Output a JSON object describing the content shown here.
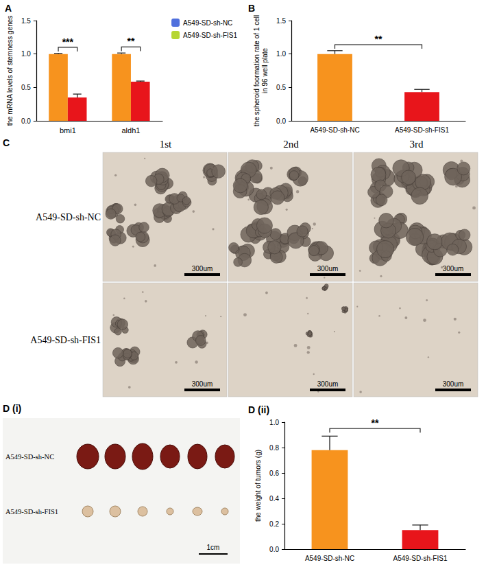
{
  "chart_data": [
    {
      "type": "bar",
      "title": "A",
      "ylabel": "the mRNA levels of stemness genes",
      "categories": [
        "bmi1",
        "aldh1"
      ],
      "series": [
        {
          "name": "A549-SD-sh-NC",
          "color": "#F7931E",
          "values": [
            1.0,
            1.0
          ],
          "errors": [
            0.01,
            0.015
          ]
        },
        {
          "name": "A549-SD-sh-FIS1",
          "color": "#E8151B",
          "values": [
            0.35,
            0.585
          ],
          "errors": [
            0.05,
            0.01
          ]
        }
      ],
      "ylim": [
        0,
        1.5
      ],
      "yticks": [
        {
          "value": 0,
          "label": "0.0"
        },
        {
          "value": 0.5,
          "label": "0.5"
        },
        {
          "value": 1,
          "label": "1.0"
        },
        {
          "value": 1.5,
          "label": "1.5"
        }
      ],
      "legend": "right",
      "annotations": [
        {
          "text": "***",
          "category": "bmi1"
        },
        {
          "text": "**",
          "category": "aldh1"
        }
      ]
    },
    {
      "type": "bar",
      "title": "B",
      "ylabel": "the spheroid foormation rate of 1 cell\nin 96 well plate",
      "categories": [
        "A549-SD-sh-NC",
        "A549-SD-sh-FIS1"
      ],
      "values": [
        1.0,
        0.43
      ],
      "errors": [
        0.05,
        0.04
      ],
      "colors": [
        "#F7931E",
        "#E8151B"
      ],
      "ylim": [
        0,
        1.5
      ],
      "yticks": [
        {
          "value": 0,
          "label": "0.0"
        },
        {
          "value": 0.5,
          "label": "0.5"
        },
        {
          "value": 1,
          "label": "1.0"
        },
        {
          "value": 1.5,
          "label": "1.5"
        }
      ],
      "annotations": [
        {
          "text": "**",
          "from": "A549-SD-sh-NC",
          "to": "A549-SD-sh-FIS1"
        }
      ]
    },
    {
      "type": "bar",
      "title": "D (ii)",
      "ylabel": "the weight of tumors (g)",
      "categories": [
        "A549-SD-sh-NC",
        "A549-SD-sh-FIS1"
      ],
      "values": [
        0.78,
        0.15
      ],
      "errors": [
        0.11,
        0.04
      ],
      "colors": [
        "#F7931E",
        "#E8151B"
      ],
      "ylim": [
        0,
        1.0
      ],
      "yticks": [
        {
          "value": 0,
          "label": "0.0"
        },
        {
          "value": 0.2,
          "label": "0.2"
        },
        {
          "value": 0.4,
          "label": "0.4"
        },
        {
          "value": 0.6,
          "label": "0.6"
        },
        {
          "value": 0.8,
          "label": "0.8"
        },
        {
          "value": 1,
          "label": "1.0"
        }
      ],
      "annotations": [
        {
          "text": "**",
          "from": "A549-SD-sh-NC",
          "to": "A549-SD-sh-FIS1"
        }
      ]
    }
  ],
  "image_panels": [
    {
      "label": "C",
      "kind": "micrograph",
      "columns": [
        "1st",
        "2nd",
        "3rd"
      ],
      "rows": [
        "A549-SD-sh-NC",
        "A549-SD-sh-FIS1"
      ],
      "scale_bar": "300um"
    },
    {
      "label": "D (i)",
      "kind": "photograph",
      "rows": [
        "A549-SD-sh-NC",
        "A549-SD-sh-FIS1"
      ],
      "scale_bar": "1cm"
    }
  ]
}
